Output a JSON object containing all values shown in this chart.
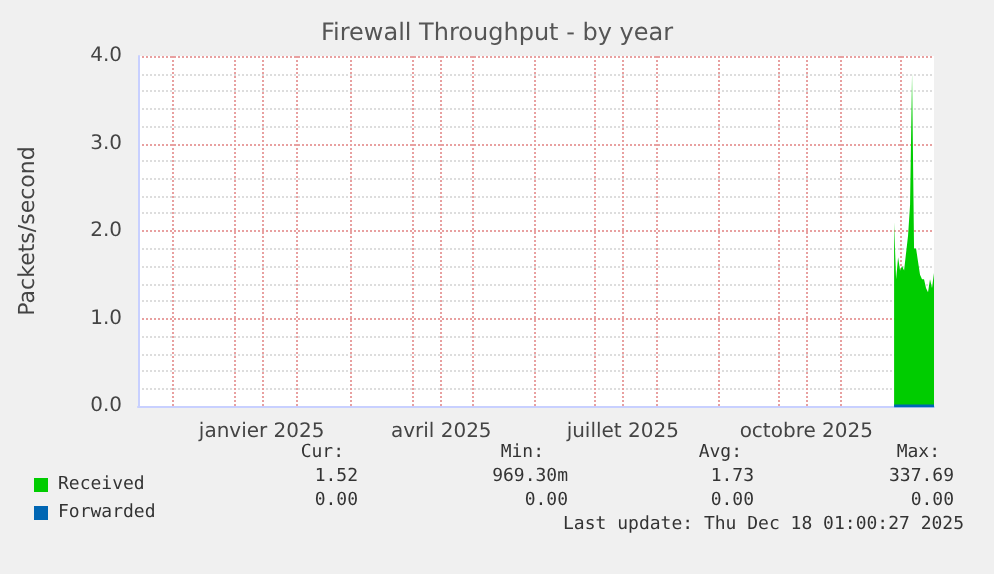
{
  "chart_data": {
    "type": "area",
    "title": "Firewall Throughput - by year",
    "ylabel": "Packets/second",
    "xlim": [
      "2024-11-14",
      "2025-12-18"
    ],
    "ylim": [
      0,
      4
    ],
    "yticks": [
      {
        "value": 0,
        "label": "0.0"
      },
      {
        "value": 1,
        "label": "1.0"
      },
      {
        "value": 2,
        "label": "2.0"
      },
      {
        "value": 3,
        "label": "3.0"
      },
      {
        "value": 4,
        "label": "4.0"
      }
    ],
    "xticks": [
      {
        "value": "2024-12-01",
        "label": null
      },
      {
        "value": "2025-01-01",
        "label": null
      },
      {
        "value": "2025-01-15",
        "label": "janvier 2025"
      },
      {
        "value": "2025-02-01",
        "label": null
      },
      {
        "value": "2025-03-01",
        "label": null
      },
      {
        "value": "2025-04-01",
        "label": null
      },
      {
        "value": "2025-04-15",
        "label": "avril 2025"
      },
      {
        "value": "2025-05-01",
        "label": null
      },
      {
        "value": "2025-06-01",
        "label": null
      },
      {
        "value": "2025-07-01",
        "label": null
      },
      {
        "value": "2025-07-15",
        "label": "juillet 2025"
      },
      {
        "value": "2025-08-01",
        "label": null
      },
      {
        "value": "2025-09-01",
        "label": null
      },
      {
        "value": "2025-10-01",
        "label": null
      },
      {
        "value": "2025-10-15",
        "label": "octobre 2025"
      },
      {
        "value": "2025-11-01",
        "label": null
      },
      {
        "value": "2025-12-01",
        "label": null
      }
    ],
    "x": [
      "2025-11-28",
      "2025-11-29",
      "2025-11-30",
      "2025-12-01",
      "2025-12-02",
      "2025-12-03",
      "2025-12-04",
      "2025-12-05",
      "2025-12-06",
      "2025-12-07",
      "2025-12-08",
      "2025-12-09",
      "2025-12-10",
      "2025-12-11",
      "2025-12-12",
      "2025-12-13",
      "2025-12-14",
      "2025-12-15",
      "2025-12-16",
      "2025-12-17",
      "2025-12-18"
    ],
    "series": [
      {
        "name": "Received",
        "color": "#00cc00",
        "values": [
          2.1,
          1.45,
          1.7,
          1.55,
          1.6,
          1.55,
          1.75,
          1.95,
          2.3,
          3.8,
          1.8,
          1.8,
          1.65,
          1.5,
          1.45,
          1.45,
          1.35,
          1.3,
          1.45,
          1.35,
          1.52
        ]
      },
      {
        "name": "Forwarded",
        "type": "line",
        "color": "#0066b3",
        "values": [
          0,
          0,
          0,
          0,
          0,
          0,
          0,
          0,
          0,
          0,
          0,
          0,
          0,
          0,
          0,
          0,
          0,
          0,
          0,
          0,
          0
        ]
      }
    ],
    "grid": true,
    "legend": "bottom left",
    "annotations": [
      "Cur:",
      "Min:",
      "Avg:",
      "Max:",
      "1.52",
      "969.30m",
      "1.73",
      "337.69",
      "0.00",
      "0.00",
      "0.00",
      "0.00",
      "Last update: Thu Dec 18 01:00:27 2025"
    ]
  }
}
